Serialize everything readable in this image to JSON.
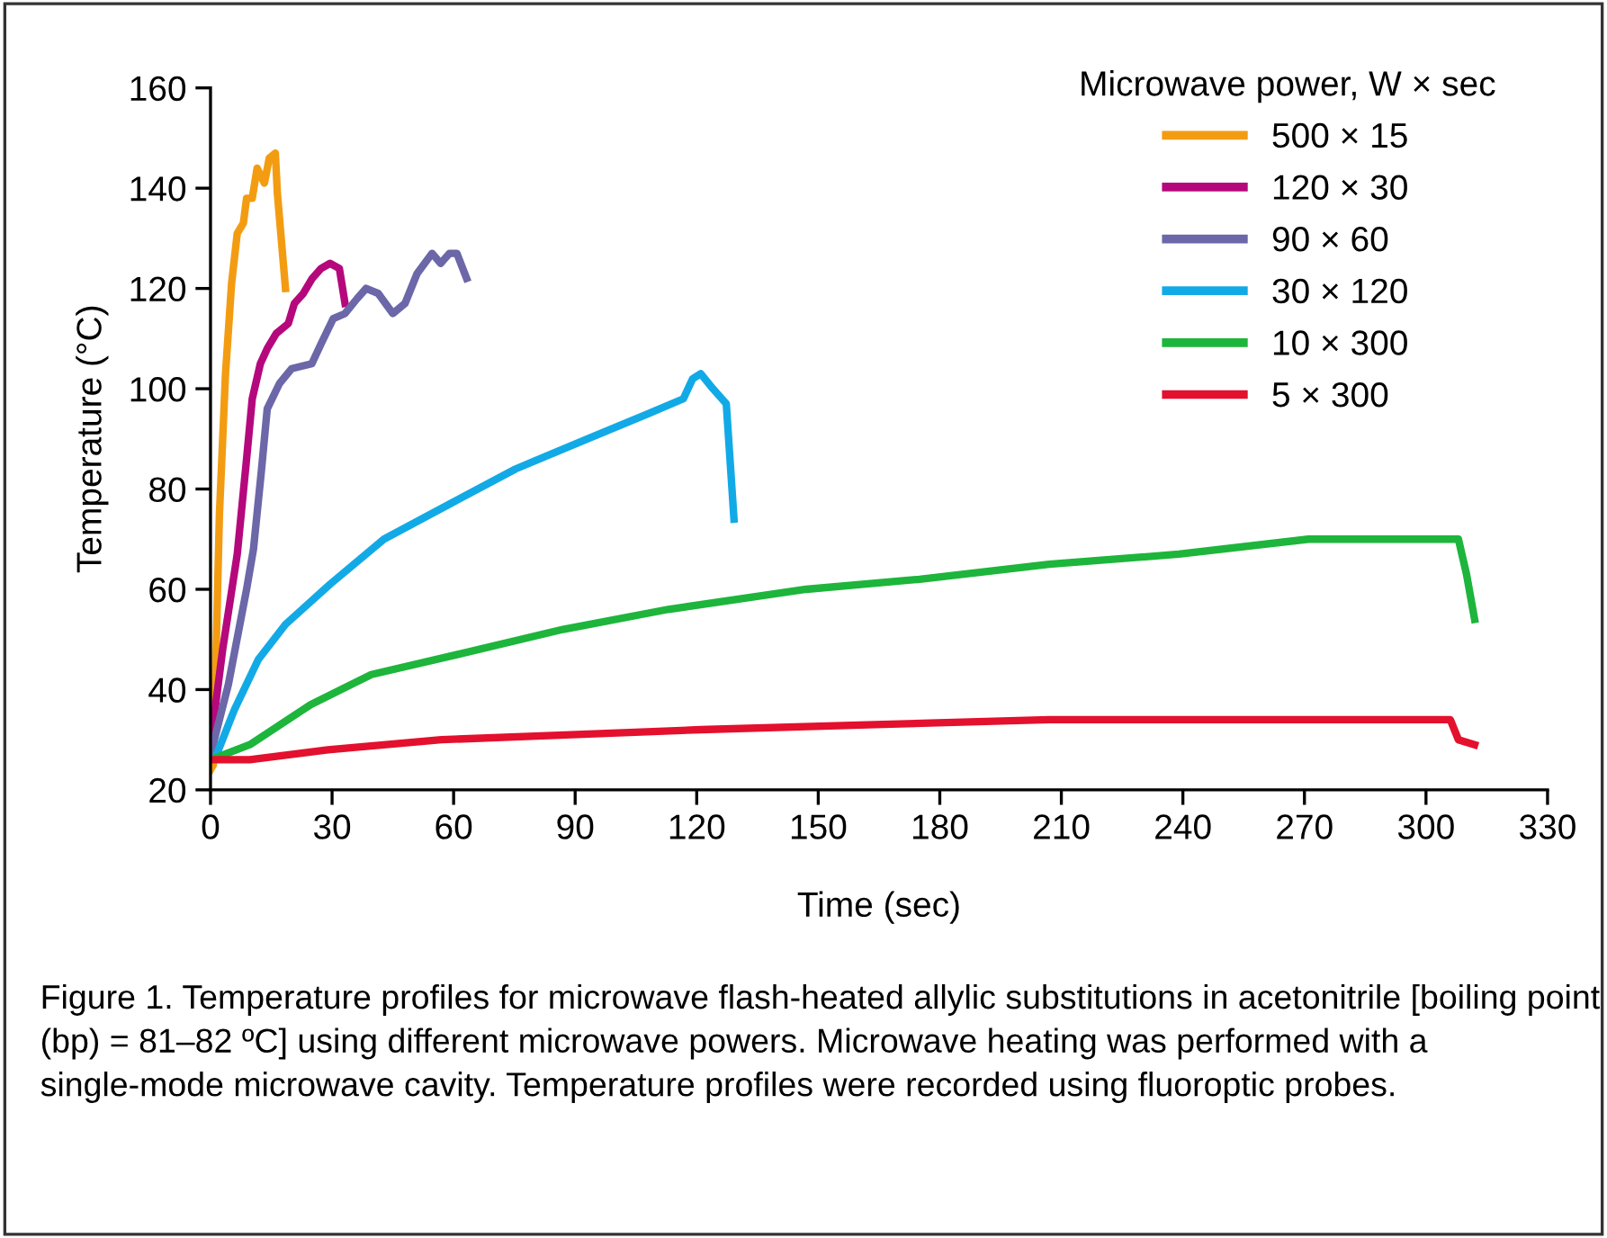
{
  "chart_data": {
    "type": "line",
    "xlabel": "Time (sec)",
    "ylabel": "Temperature (°C)",
    "legend_title": "Microwave power, W × sec",
    "xlim": [
      0,
      330
    ],
    "ylim": [
      20,
      160
    ],
    "xticks": [
      0,
      30,
      60,
      90,
      120,
      150,
      180,
      210,
      240,
      270,
      300,
      330
    ],
    "yticks": [
      20,
      40,
      60,
      80,
      100,
      120,
      140,
      160
    ],
    "grid": false,
    "legend": "top right",
    "marker": "none",
    "line_style": "solid",
    "series": [
      {
        "name": "500 × 15",
        "color": "#f39c12",
        "x": [
          0,
          0.7,
          2.2,
          3.7,
          5.2,
          6.6,
          8.1,
          8.9,
          10.3,
          11.5,
          13.3,
          14.5,
          16,
          16.5,
          18.5
        ],
        "values": [
          24,
          25,
          75,
          103,
          121,
          131,
          133,
          138,
          138,
          144,
          141,
          146,
          147,
          139,
          120
        ]
      },
      {
        "name": "120 × 30",
        "color": "#b5087d",
        "x": [
          0,
          3,
          6.6,
          8.9,
          10.3,
          12.3,
          14,
          16.2,
          19.2,
          20.7,
          22.9,
          25.1,
          27.3,
          29.5,
          31.8,
          33.2
        ],
        "values": [
          29,
          48,
          67,
          86,
          98,
          105,
          108,
          111,
          113,
          117,
          119,
          122,
          124,
          125,
          124,
          117
        ]
      },
      {
        "name": "90 × 60",
        "color": "#6b67a8",
        "x": [
          0,
          4.4,
          8.9,
          10.6,
          12.6,
          14,
          17,
          20,
          25,
          27.3,
          30.3,
          33.2,
          36.2,
          38.4,
          41.4,
          45,
          48,
          51,
          54.7,
          56.8,
          59,
          60.8,
          63.2
        ],
        "values": [
          27,
          41,
          60,
          68,
          84,
          96,
          101,
          104,
          105,
          109,
          114,
          115,
          118,
          120,
          119,
          115,
          117,
          123,
          127,
          125,
          127,
          127,
          122
        ]
      },
      {
        "name": "30 × 120",
        "color": "#12aae6",
        "x": [
          1.5,
          5.9,
          11.8,
          18.5,
          29.5,
          42.8,
          59,
          75.3,
          93,
          108,
          116.7,
          119,
          121,
          124,
          127.3,
          129.2
        ],
        "values": [
          27,
          36,
          46,
          53,
          61,
          70,
          77,
          84,
          90,
          95,
          98,
          102,
          103,
          100,
          97,
          74
        ]
      },
      {
        "name": "10 × 300",
        "color": "#1db53b",
        "x": [
          0,
          9.7,
          24.7,
          39.7,
          61,
          87,
          113,
          147,
          175,
          207,
          239,
          271,
          299,
          308,
          310,
          312
        ],
        "values": [
          26,
          29,
          37,
          43,
          47,
          52,
          56,
          60,
          62,
          65,
          67,
          70,
          70,
          70,
          63,
          54
        ]
      },
      {
        "name": "5 × 300",
        "color": "#e3102e",
        "x": [
          0,
          9.7,
          29,
          57,
          89,
          121,
          164,
          207,
          250,
          293,
          306,
          308,
          312
        ],
        "values": [
          26,
          26,
          28,
          30,
          31,
          32,
          33,
          34,
          34,
          34,
          34,
          30,
          29
        ]
      }
    ],
    "annotations": [
      "Figure 1. Temperature profiles for microwave flash-heated allylic substitutions in acetonitrile [boiling point (bp) = 81–82 ºC] using different microwave powers. Microwave heating was performed with a single-mode microwave cavity. Temperature profiles were recorded using fluoroptic probes."
    ]
  }
}
